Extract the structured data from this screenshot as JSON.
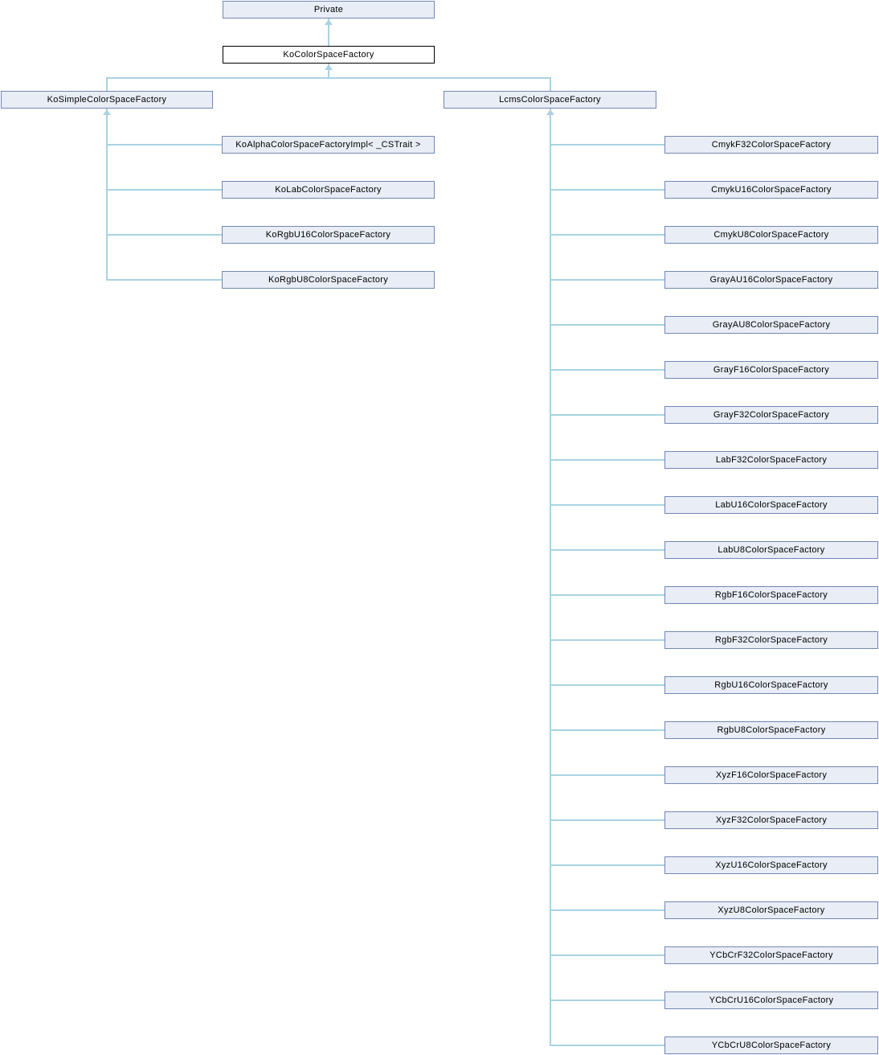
{
  "diagram": {
    "colors": {
      "background": "#ffffff",
      "node_fill": "#e8edf6",
      "node_border": "#7388b5",
      "focus_fill": "#ffffff",
      "focus_border": "#000000",
      "edge": "#aad2e4",
      "text": "#000000"
    },
    "base": {
      "label": "Private"
    },
    "focus": {
      "label": "KoColorSpaceFactory"
    },
    "branches": [
      {
        "parent": {
          "label": "KoSimpleColorSpaceFactory"
        },
        "children": [
          {
            "label": "KoAlphaColorSpaceFactoryImpl< _CSTrait >"
          },
          {
            "label": "KoLabColorSpaceFactory"
          },
          {
            "label": "KoRgbU16ColorSpaceFactory"
          },
          {
            "label": "KoRgbU8ColorSpaceFactory"
          }
        ]
      },
      {
        "parent": {
          "label": "LcmsColorSpaceFactory"
        },
        "children": [
          {
            "label": "CmykF32ColorSpaceFactory"
          },
          {
            "label": "CmykU16ColorSpaceFactory"
          },
          {
            "label": "CmykU8ColorSpaceFactory"
          },
          {
            "label": "GrayAU16ColorSpaceFactory"
          },
          {
            "label": "GrayAU8ColorSpaceFactory"
          },
          {
            "label": "GrayF16ColorSpaceFactory"
          },
          {
            "label": "GrayF32ColorSpaceFactory"
          },
          {
            "label": "LabF32ColorSpaceFactory"
          },
          {
            "label": "LabU16ColorSpaceFactory"
          },
          {
            "label": "LabU8ColorSpaceFactory"
          },
          {
            "label": "RgbF16ColorSpaceFactory"
          },
          {
            "label": "RgbF32ColorSpaceFactory"
          },
          {
            "label": "RgbU16ColorSpaceFactory"
          },
          {
            "label": "RgbU8ColorSpaceFactory"
          },
          {
            "label": "XyzF16ColorSpaceFactory"
          },
          {
            "label": "XyzF32ColorSpaceFactory"
          },
          {
            "label": "XyzU16ColorSpaceFactory"
          },
          {
            "label": "XyzU8ColorSpaceFactory"
          },
          {
            "label": "YCbCrF32ColorSpaceFactory"
          },
          {
            "label": "YCbCrU16ColorSpaceFactory"
          },
          {
            "label": "YCbCrU8ColorSpaceFactory"
          }
        ]
      }
    ]
  }
}
